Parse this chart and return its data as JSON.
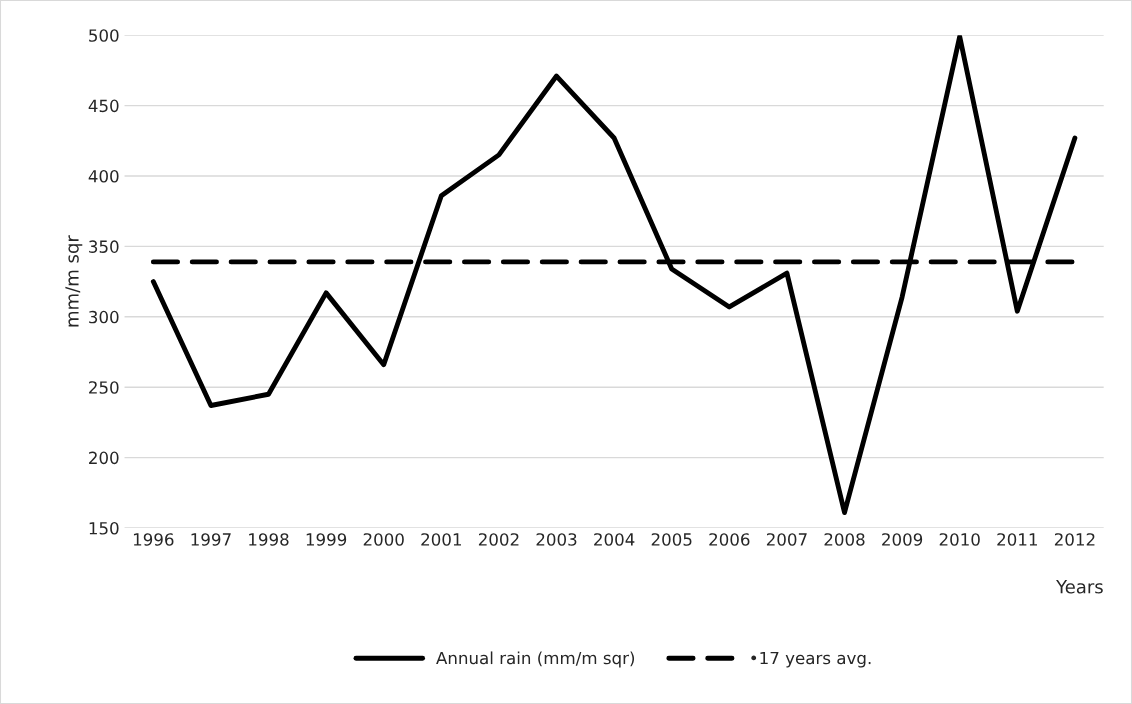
{
  "chart_data": {
    "type": "line",
    "xlabel": "Years",
    "ylabel": "mm/m sqr",
    "categories": [
      "1996",
      "1997",
      "1998",
      "1999",
      "2000",
      "2001",
      "2002",
      "2003",
      "2004",
      "2005",
      "2006",
      "2007",
      "2008",
      "2009",
      "2010",
      "2011",
      "2012"
    ],
    "series": [
      {
        "name": "Annual rain (mm/m sqr)",
        "color": "#000000",
        "line_style": "solid",
        "values": [
          325,
          237,
          245,
          317,
          266,
          386,
          415,
          471,
          427,
          334,
          307,
          331,
          161,
          314,
          499,
          304,
          427
        ]
      },
      {
        "name": "•17 years avg.",
        "color": "#000000",
        "line_style": "dashed",
        "values": [
          339,
          339,
          339,
          339,
          339,
          339,
          339,
          339,
          339,
          339,
          339,
          339,
          339,
          339,
          339,
          339,
          339
        ]
      }
    ],
    "ylim": [
      150,
      500
    ],
    "yticks": [
      150,
      200,
      250,
      300,
      350,
      400,
      450,
      500
    ],
    "grid": "y",
    "legend": "bottom",
    "marker": "none"
  }
}
